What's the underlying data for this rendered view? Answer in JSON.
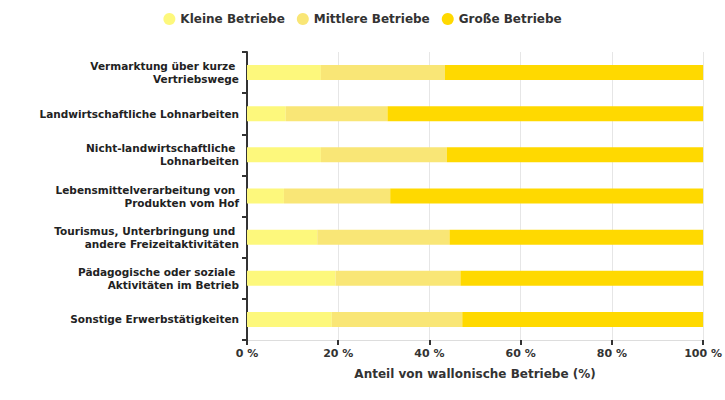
{
  "chart_data": {
    "type": "bar",
    "orientation": "horizontal",
    "stacked": true,
    "categories": [
      "Vermarktung über kurze Vertriebswege",
      "Landwirtschaftliche Lohnarbeiten",
      "Nicht-landwirtschaftliche Lohnarbeiten",
      "Lebensmittelverarbeitung von Produkten vom Hof",
      "Tourismus, Unterbringung und andere Freizeitaktivitäten",
      "Pädagogische oder soziale Aktivitäten im Betrieb",
      "Sonstige Erwerbstätigkeiten"
    ],
    "series": [
      {
        "name": "Kleine Betriebe",
        "color": "#fdf87c",
        "values": [
          16.2,
          8.5,
          16.2,
          8.1,
          15.4,
          19.4,
          18.6
        ]
      },
      {
        "name": "Mittlere Betriebe",
        "color": "#f9e676",
        "values": [
          27.2,
          22.3,
          27.6,
          23.3,
          29.0,
          27.4,
          28.6
        ]
      },
      {
        "name": "Große Betriebe",
        "color": "#ffd900",
        "values": [
          56.6,
          69.2,
          56.2,
          68.6,
          55.6,
          53.2,
          52.8
        ]
      }
    ],
    "xlabel": "Anteil von wallonische Betriebe (%)",
    "xlim": [
      0,
      100
    ],
    "xticks": [
      {
        "value": 0,
        "label": "0 %"
      },
      {
        "value": 20,
        "label": "20 %"
      },
      {
        "value": 40,
        "label": "40 %"
      },
      {
        "value": 60,
        "label": "60 %"
      },
      {
        "value": 80,
        "label": "80 %"
      },
      {
        "value": 100,
        "label": "100 %"
      }
    ],
    "grid": true,
    "legend": "top"
  }
}
